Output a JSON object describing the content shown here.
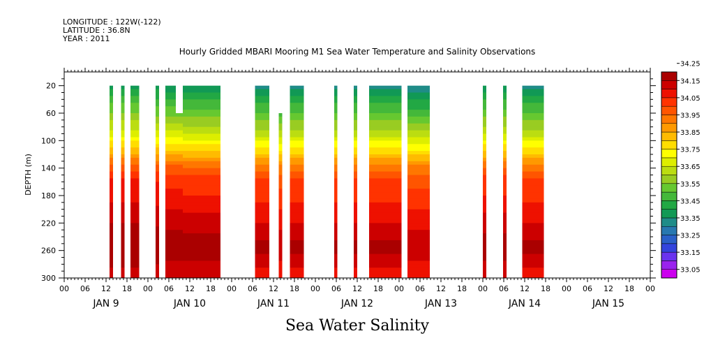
{
  "header": {
    "longitude": "LONGITUDE : 122W(-122)",
    "latitude": "LATITUDE : 36.8N",
    "year": "YEAR : 2011"
  },
  "title": "Hourly Gridded MBARI Mooring M1 Sea Water Temperature and Salinity Observations",
  "variable_title": "Sea Water Salinity",
  "chart_data": {
    "type": "heatmap",
    "title": "Hourly Gridded MBARI Mooring M1 Sea Water Temperature and Salinity Observations",
    "subtitle": "Sea Water Salinity",
    "xlabel": "",
    "ylabel": "DEPTH (m)",
    "x_units": "hours since 2011-01-09 00:00",
    "xlim": [
      0,
      168
    ],
    "ylim": [
      0,
      300
    ],
    "y_reversed": true,
    "y_ticks": [
      20,
      60,
      100,
      140,
      180,
      220,
      260,
      300
    ],
    "x_hour_ticks": [
      "00",
      "06",
      "12",
      "18",
      "00",
      "06",
      "12",
      "18",
      "00",
      "06",
      "12",
      "18",
      "00",
      "06",
      "12",
      "18",
      "00",
      "06",
      "12",
      "18",
      "00",
      "06",
      "12",
      "18",
      "00",
      "06",
      "12",
      "18",
      "00"
    ],
    "day_labels": [
      "JAN  9",
      "JAN 10",
      "JAN 11",
      "JAN 12",
      "JAN 13",
      "JAN 14",
      "JAN 15"
    ],
    "colorbar": {
      "levels": [
        "33.05",
        "33.10",
        "33.15",
        "33.20",
        "33.25",
        "33.30",
        "33.35",
        "33.40",
        "33.45",
        "33.50",
        "33.55",
        "33.60",
        "33.65",
        "33.70",
        "33.75",
        "33.80",
        "33.85",
        "33.90",
        "33.95",
        "34.00",
        "34.05",
        "34.10",
        "34.15",
        "34.20",
        "34.25",
        "34.30"
      ],
      "labels": [
        "33.05",
        "33.15",
        "33.25",
        "33.35",
        "33.45",
        "33.55",
        "33.65",
        "33.75",
        "33.85",
        "33.95",
        "34.05",
        "34.15",
        "34.25"
      ],
      "colors": [
        "#cc00ee",
        "#9a22ee",
        "#6a33ee",
        "#3344dd",
        "#2a60c8",
        "#2878b0",
        "#1f8c88",
        "#119955",
        "#22a844",
        "#44b83a",
        "#66c830",
        "#99cc22",
        "#bbdd11",
        "#ddee00",
        "#ffff00",
        "#ffdd00",
        "#ffbb00",
        "#ff9900",
        "#ff7700",
        "#ff5500",
        "#ff3300",
        "#ee1100",
        "#cc0000",
        "#aa0000"
      ]
    },
    "depth_profile": [
      {
        "depth": 20,
        "value": 33.38
      },
      {
        "depth": 40,
        "value": 33.47
      },
      {
        "depth": 60,
        "value": 33.55
      },
      {
        "depth": 80,
        "value": 33.63
      },
      {
        "depth": 100,
        "value": 33.74
      },
      {
        "depth": 120,
        "value": 33.86
      },
      {
        "depth": 140,
        "value": 33.99
      },
      {
        "depth": 160,
        "value": 34.06
      },
      {
        "depth": 180,
        "value": 34.08
      },
      {
        "depth": 200,
        "value": 34.12
      },
      {
        "depth": 220,
        "value": 34.15
      },
      {
        "depth": 240,
        "value": 34.19
      },
      {
        "depth": 260,
        "value": 34.22
      },
      {
        "depth": 280,
        "value": 34.16
      },
      {
        "depth": 300,
        "value": 34.13
      }
    ],
    "segments": [
      {
        "start": 13.0,
        "end": 14.0,
        "top_depth": 20,
        "shift": 0.05
      },
      {
        "start": 16.3,
        "end": 17.3,
        "top_depth": 20,
        "shift": 0.05
      },
      {
        "start": 19.0,
        "end": 21.5,
        "top_depth": 20,
        "shift": 0.05
      },
      {
        "start": 26.2,
        "end": 27.2,
        "top_depth": 20,
        "shift": 0.04
      },
      {
        "start": 29.0,
        "end": 32.0,
        "top_depth": 20,
        "shift": 0.03
      },
      {
        "start": 32.0,
        "end": 34.0,
        "top_depth": 60,
        "shift": 0.03
      },
      {
        "start": 34.0,
        "end": 44.8,
        "top_depth": 20,
        "shift": 0.02
      },
      {
        "start": 54.7,
        "end": 58.8,
        "top_depth": 20,
        "shift": 0.0
      },
      {
        "start": 61.5,
        "end": 62.5,
        "top_depth": 60,
        "shift": -0.02
      },
      {
        "start": 64.7,
        "end": 68.7,
        "top_depth": 20,
        "shift": 0.0
      },
      {
        "start": 77.4,
        "end": 78.3,
        "top_depth": 20,
        "shift": 0.0
      },
      {
        "start": 83.0,
        "end": 84.0,
        "top_depth": 20,
        "shift": 0.0
      },
      {
        "start": 87.4,
        "end": 96.7,
        "top_depth": 20,
        "shift": 0.0
      },
      {
        "start": 98.4,
        "end": 104.8,
        "top_depth": 20,
        "shift": -0.02
      },
      {
        "start": 120.0,
        "end": 121.0,
        "top_depth": 20,
        "shift": 0.02
      },
      {
        "start": 125.8,
        "end": 126.8,
        "top_depth": 20,
        "shift": 0.02
      },
      {
        "start": 131.3,
        "end": 137.5,
        "top_depth": 20,
        "shift": 0.0
      }
    ]
  }
}
